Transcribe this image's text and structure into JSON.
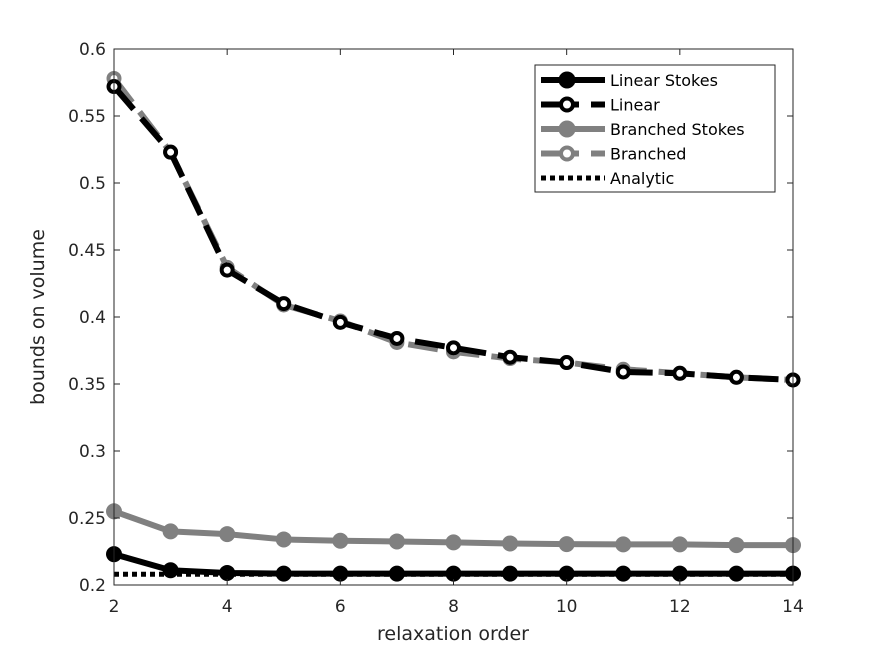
{
  "chart_data": {
    "type": "line",
    "xlabel": "relaxation order",
    "ylabel": "bounds on volume",
    "xlim": [
      2,
      14
    ],
    "ylim": [
      0.2,
      0.6
    ],
    "xticks": [
      2,
      4,
      6,
      8,
      10,
      12,
      14
    ],
    "yticks": [
      0.2,
      0.25,
      0.3,
      0.35,
      0.4,
      0.45,
      0.5,
      0.55,
      0.6
    ],
    "ytick_labels": [
      "0.2",
      "0.25",
      "0.3",
      "0.35",
      "0.4",
      "0.45",
      "0.5",
      "0.55",
      "0.6"
    ],
    "legend_position": "top-right",
    "series": [
      {
        "name": "Linear Stokes",
        "color": "#000000",
        "line_style": "solid",
        "marker": "filled-circle",
        "x": [
          2,
          3,
          4,
          5,
          6,
          7,
          8,
          9,
          10,
          11,
          12,
          13,
          14
        ],
        "y": [
          0.223,
          0.211,
          0.209,
          0.2085,
          0.2085,
          0.2085,
          0.2085,
          0.2085,
          0.2085,
          0.2085,
          0.2085,
          0.2085,
          0.2085
        ]
      },
      {
        "name": "Linear",
        "color": "#000000",
        "line_style": "dashed",
        "marker": "open-circle",
        "x": [
          2,
          3,
          4,
          5,
          6,
          7,
          8,
          9,
          10,
          11,
          12,
          13,
          14
        ],
        "y": [
          0.572,
          0.523,
          0.435,
          0.41,
          0.396,
          0.384,
          0.377,
          0.37,
          0.366,
          0.359,
          0.358,
          0.355,
          0.353
        ]
      },
      {
        "name": "Branched Stokes",
        "color": "#808080",
        "line_style": "solid",
        "marker": "filled-circle",
        "x": [
          2,
          3,
          4,
          5,
          6,
          7,
          8,
          9,
          10,
          11,
          12,
          13,
          14
        ],
        "y": [
          0.255,
          0.24,
          0.238,
          0.234,
          0.233,
          0.2325,
          0.2318,
          0.231,
          0.2305,
          0.2303,
          0.2303,
          0.2298,
          0.2298
        ]
      },
      {
        "name": "Branched",
        "color": "#808080",
        "line_style": "dashed",
        "marker": "open-circle",
        "x": [
          2,
          3,
          4,
          5,
          6,
          7,
          8,
          9,
          10,
          11,
          12,
          13,
          14
        ],
        "y": [
          0.578,
          0.523,
          0.437,
          0.409,
          0.397,
          0.381,
          0.374,
          0.369,
          0.366,
          0.361,
          0.358,
          0.355,
          0.353
        ]
      },
      {
        "name": "Analytic",
        "color": "#000000",
        "line_style": "dotted",
        "marker": "none",
        "x": [
          2,
          14
        ],
        "y": [
          0.208,
          0.208
        ]
      }
    ]
  }
}
